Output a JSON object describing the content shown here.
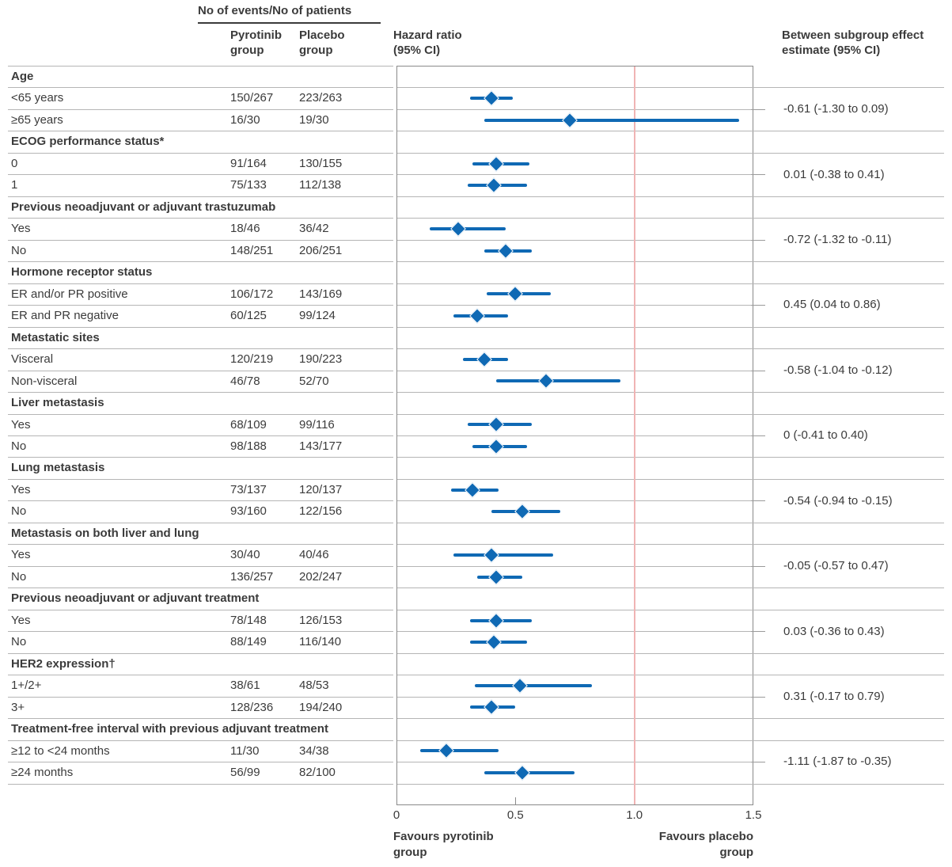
{
  "header": {
    "events_patients_label": "No of events/No of patients",
    "pyrotinib_col": "Pyrotinib group",
    "placebo_col": "Placebo group",
    "hazard_ratio_col": "Hazard ratio (95% CI)",
    "between_subgroup_col": "Between subgroup effect estimate (95% CI)"
  },
  "axis": {
    "tick_labels": [
      "0",
      "0.5",
      "1.0",
      "1.5"
    ],
    "tick_values": [
      0,
      0.5,
      1.0,
      1.5
    ],
    "favours_left": "Favours pyrotinib group",
    "favours_right": "Favours placebo group"
  },
  "colors": {
    "marker_blue": "#0f69b4",
    "reference_pink": "#f0b4b4",
    "grid_gray": "#b5b5b5",
    "frame_gray": "#8a8a8a",
    "text": "#3b3b3b"
  },
  "chart_data": {
    "type": "forest",
    "xlim": [
      0,
      1.5
    ],
    "x_ticks": [
      0,
      0.5,
      1.0,
      1.5
    ],
    "reference_line": 1.0,
    "grid": true,
    "xlabel_left": "Favours pyrotinib group",
    "xlabel_right": "Favours placebo group",
    "value_column_title": "Hazard ratio (95% CI)",
    "sections": [
      {
        "label": "Age",
        "between_subgroup_estimate": "-0.61 (-1.30 to 0.09)",
        "rows": [
          {
            "label": "<65 years",
            "pyrotinib": "150/267",
            "placebo": "223/263",
            "hr": 0.4,
            "ci_low": 0.31,
            "ci_high": 0.49
          },
          {
            "label": "≥65 years",
            "pyrotinib": "16/30",
            "placebo": "19/30",
            "hr": 0.73,
            "ci_low": 0.37,
            "ci_high": 1.44
          }
        ]
      },
      {
        "label": "ECOG performance status*",
        "between_subgroup_estimate": "0.01 (-0.38 to 0.41)",
        "rows": [
          {
            "label": "0",
            "pyrotinib": "91/164",
            "placebo": "130/155",
            "hr": 0.42,
            "ci_low": 0.32,
            "ci_high": 0.56
          },
          {
            "label": "1",
            "pyrotinib": "75/133",
            "placebo": "112/138",
            "hr": 0.41,
            "ci_low": 0.3,
            "ci_high": 0.55
          }
        ]
      },
      {
        "label": "Previous neoadjuvant or adjuvant trastuzumab",
        "between_subgroup_estimate": "-0.72 (-1.32 to -0.11)",
        "rows": [
          {
            "label": "Yes",
            "pyrotinib": "18/46",
            "placebo": "36/42",
            "hr": 0.26,
            "ci_low": 0.14,
            "ci_high": 0.46
          },
          {
            "label": "No",
            "pyrotinib": "148/251",
            "placebo": "206/251",
            "hr": 0.46,
            "ci_low": 0.37,
            "ci_high": 0.57
          }
        ]
      },
      {
        "label": "Hormone receptor status",
        "between_subgroup_estimate": "0.45 (0.04 to 0.86)",
        "rows": [
          {
            "label": "ER and/or PR positive",
            "pyrotinib": "106/172",
            "placebo": "143/169",
            "hr": 0.5,
            "ci_low": 0.38,
            "ci_high": 0.65
          },
          {
            "label": "ER and PR negative",
            "pyrotinib": "60/125",
            "placebo": "99/124",
            "hr": 0.34,
            "ci_low": 0.24,
            "ci_high": 0.47
          }
        ]
      },
      {
        "label": "Metastatic sites",
        "between_subgroup_estimate": "-0.58 (-1.04 to -0.12)",
        "rows": [
          {
            "label": "Visceral",
            "pyrotinib": "120/219",
            "placebo": "190/223",
            "hr": 0.37,
            "ci_low": 0.28,
            "ci_high": 0.47
          },
          {
            "label": "Non-visceral",
            "pyrotinib": "46/78",
            "placebo": "52/70",
            "hr": 0.63,
            "ci_low": 0.42,
            "ci_high": 0.94
          }
        ]
      },
      {
        "label": "Liver metastasis",
        "between_subgroup_estimate": "0 (-0.41 to 0.40)",
        "rows": [
          {
            "label": "Yes",
            "pyrotinib": "68/109",
            "placebo": "99/116",
            "hr": 0.42,
            "ci_low": 0.3,
            "ci_high": 0.57
          },
          {
            "label": "No",
            "pyrotinib": "98/188",
            "placebo": "143/177",
            "hr": 0.42,
            "ci_low": 0.32,
            "ci_high": 0.55
          }
        ]
      },
      {
        "label": "Lung metastasis",
        "between_subgroup_estimate": "-0.54 (-0.94 to -0.15)",
        "rows": [
          {
            "label": "Yes",
            "pyrotinib": "73/137",
            "placebo": "120/137",
            "hr": 0.32,
            "ci_low": 0.23,
            "ci_high": 0.43
          },
          {
            "label": "No",
            "pyrotinib": "93/160",
            "placebo": "122/156",
            "hr": 0.53,
            "ci_low": 0.4,
            "ci_high": 0.69
          }
        ]
      },
      {
        "label": "Metastasis on both liver and lung",
        "between_subgroup_estimate": "-0.05 (-0.57 to 0.47)",
        "rows": [
          {
            "label": "Yes",
            "pyrotinib": "30/40",
            "placebo": "40/46",
            "hr": 0.4,
            "ci_low": 0.24,
            "ci_high": 0.66
          },
          {
            "label": "No",
            "pyrotinib": "136/257",
            "placebo": "202/247",
            "hr": 0.42,
            "ci_low": 0.34,
            "ci_high": 0.53
          }
        ]
      },
      {
        "label": "Previous neoadjuvant or adjuvant treatment",
        "between_subgroup_estimate": "0.03 (-0.36 to 0.43)",
        "rows": [
          {
            "label": "Yes",
            "pyrotinib": "78/148",
            "placebo": "126/153",
            "hr": 0.42,
            "ci_low": 0.31,
            "ci_high": 0.57
          },
          {
            "label": "No",
            "pyrotinib": "88/149",
            "placebo": "116/140",
            "hr": 0.41,
            "ci_low": 0.31,
            "ci_high": 0.55
          }
        ]
      },
      {
        "label": "HER2 expression†",
        "between_subgroup_estimate": "0.31 (-0.17 to 0.79)",
        "rows": [
          {
            "label": "1+/2+",
            "pyrotinib": "38/61",
            "placebo": "48/53",
            "hr": 0.52,
            "ci_low": 0.33,
            "ci_high": 0.82
          },
          {
            "label": "3+",
            "pyrotinib": "128/236",
            "placebo": "194/240",
            "hr": 0.4,
            "ci_low": 0.31,
            "ci_high": 0.5
          }
        ]
      },
      {
        "label": "Treatment-free interval with previous adjuvant treatment",
        "between_subgroup_estimate": "-1.11 (-1.87 to -0.35)",
        "rows": [
          {
            "label": "≥12 to <24 months",
            "pyrotinib": "11/30",
            "placebo": "34/38",
            "hr": 0.21,
            "ci_low": 0.1,
            "ci_high": 0.43
          },
          {
            "label": "≥24 months",
            "pyrotinib": "56/99",
            "placebo": "82/100",
            "hr": 0.53,
            "ci_low": 0.37,
            "ci_high": 0.75
          }
        ]
      }
    ]
  }
}
